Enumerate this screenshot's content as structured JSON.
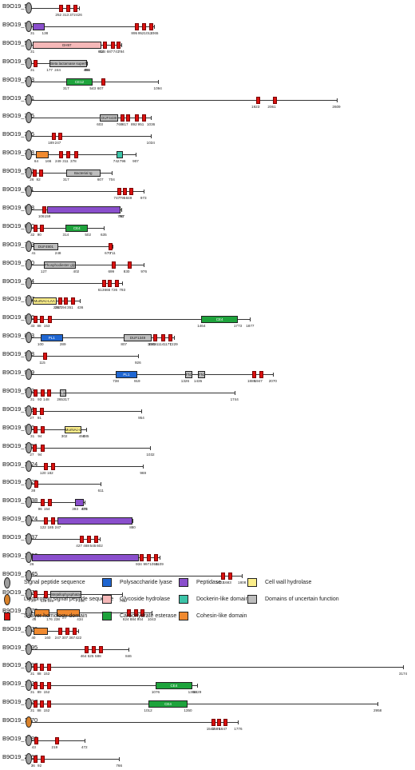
{
  "palette": {
    "polysaccharide_lyase": "#1f66d1",
    "glycoside_hydrolase": "#f5b8b8",
    "carbohydrate_esterase": "#1ea33c",
    "peptidase": "#8a4fcc",
    "dockerin": "#3cc4a8",
    "cohesin": "#f08a30",
    "cell_wall_hydrolase": "#fbee8a",
    "uncertain": "#bdbdbd",
    "slh": "#d9100e",
    "signal": "#9e9e9e",
    "lipo": "#d9822b"
  },
  "proteins": [
    {
      "name": "B9O19_50",
      "len": 426,
      "sig": "signal",
      "slh": [
        252,
        313,
        372
      ],
      "doms": [],
      "nums": [
        "252",
        "313",
        "372",
        "426"
      ]
    },
    {
      "name": "B9O19_52",
      "len": 1065,
      "sig": "signal",
      "slh": [
        895,
        952,
        1012
      ],
      "doms": [
        {
          "s": 31,
          "e": 138,
          "t": "peptidase",
          "l": ""
        }
      ],
      "nums": [
        "31",
        "138",
        "895",
        "952",
        "1012",
        "1065"
      ]
    },
    {
      "name": "B9O19_53",
      "len": 784,
      "sig": "signal",
      "slh": [
        624,
        687,
        741
      ],
      "doms": [
        {
          "s": 31,
          "e": 614,
          "t": "glycoside_hydrolase",
          "l": "GH97"
        }
      ],
      "nums": [
        "31",
        "614",
        "624",
        "687",
        "741",
        "784"
      ]
    },
    {
      "name": "B9O19_97",
      "len": 496,
      "sig": "signal",
      "slh": [
        31
      ],
      "doms": [
        {
          "s": 177,
          "e": 491,
          "t": "uncertain",
          "l": "Beta lactamase superfamily"
        }
      ],
      "nums": [
        "31",
        "177",
        "244",
        "491",
        "496"
      ]
    },
    {
      "name": "B9O19_203",
      "len": 1094,
      "sig": "signal",
      "slh": [
        607
      ],
      "doms": [
        {
          "s": 317,
          "e": 543,
          "t": "carbohydrate_esterase",
          "l": "CE12"
        }
      ],
      "nums": [
        "317",
        "543",
        "607",
        "1094"
      ]
    },
    {
      "name": "B9O19_241",
      "len": 2609,
      "sig": "signal",
      "slh": [
        1923,
        2061
      ],
      "doms": [],
      "nums": [
        "1923",
        "2061",
        "2609"
      ]
    },
    {
      "name": "B9O19_305",
      "len": 1036,
      "sig": "signal",
      "slh": [
        769,
        817,
        892,
        951
      ],
      "doms": [
        {
          "s": 603,
          "e": 760,
          "t": "uncertain",
          "l": "DUF4430"
        }
      ],
      "nums": [
        "603",
        "769",
        "817",
        "892",
        "951",
        "1036"
      ]
    },
    {
      "name": "B9O19_386",
      "len": 1034,
      "sig": "signal",
      "slh": [
        189,
        247
      ],
      "doms": [],
      "nums": [
        "189",
        "247",
        "1034"
      ]
    },
    {
      "name": "B9O19_388",
      "len": 907,
      "sig": "signal",
      "slh": [
        249,
        311,
        378
      ],
      "doms": [
        {
          "s": 64,
          "e": 166,
          "t": "cohesin",
          "l": ""
        },
        {
          "s": 742,
          "e": 796,
          "t": "dockerin",
          "l": ""
        }
      ],
      "nums": [
        "64",
        "166",
        "249",
        "311",
        "378",
        "742",
        "796",
        "907"
      ]
    },
    {
      "name": "B9O19_543",
      "len": 704,
      "sig": "signal",
      "slh": [
        26,
        82
      ],
      "doms": [
        {
          "s": 317,
          "e": 607,
          "t": "uncertain",
          "l": "Bacterial Ig"
        }
      ],
      "nums": [
        "26",
        "82",
        "317",
        "607",
        "704"
      ]
    },
    {
      "name": "B9O19_611",
      "len": 973,
      "sig": "signal",
      "slh": [
        747,
        795,
        849
      ],
      "doms": [],
      "nums": [
        "747",
        "795",
        "849",
        "973"
      ]
    },
    {
      "name": "B9O19_618",
      "len": 787,
      "sig": "signal",
      "slh": [
        106
      ],
      "doms": [
        {
          "s": 159,
          "e": 780,
          "t": "peptidase",
          "l": ""
        }
      ],
      "nums": [
        "106",
        "159",
        "780",
        "787"
      ]
    },
    {
      "name": "B9O19_680",
      "len": 635,
      "sig": "signal",
      "slh": [
        32,
        90
      ],
      "doms": [
        {
          "s": 314,
          "e": 502,
          "t": "carbohydrate_esterase",
          "l": "CE4"
        }
      ],
      "nums": [
        "32",
        "90",
        "314",
        "502",
        "635"
      ]
    },
    {
      "name": "B9O19_743",
      "len": 711,
      "sig": "signal",
      "slh": [
        670
      ],
      "doms": [
        {
          "s": 41,
          "e": 248,
          "t": "uncertain",
          "l": "DUF4901"
        }
      ],
      "nums": [
        "41",
        "248",
        "670",
        "711"
      ]
    },
    {
      "name": "B9O19_770",
      "len": 976,
      "sig": "signal",
      "slh": [
        699,
        830
      ],
      "doms": [
        {
          "s": 127,
          "e": 402,
          "t": "uncertain",
          "l": "Phosphodiester glycosidase"
        }
      ],
      "nums": [
        "127",
        "402",
        "699",
        "830",
        "976"
      ]
    },
    {
      "name": "B9O19_794",
      "len": 793,
      "sig": "signal",
      "slh": [
        613,
        666,
        726
      ],
      "doms": [],
      "nums": [
        "613",
        "666",
        "726",
        "793"
      ]
    },
    {
      "name": "B9O19_797",
      "len": 436,
      "sig": "signal",
      "slh": [
        247,
        294,
        351
      ],
      "doms": [
        {
          "s": 31,
          "e": 235,
          "t": "cell_wall_hydrolase",
          "l": "MurNAc-LAA"
        }
      ],
      "nums": [
        "235",
        "247",
        "294",
        "351",
        "436"
      ]
    },
    {
      "name": "B9O19_826",
      "len": 1877,
      "sig": "signal",
      "slh": [
        33,
        88,
        153
      ],
      "doms": [
        {
          "s": 1464,
          "e": 1773,
          "t": "carbohydrate_esterase",
          "l": "CE4"
        }
      ],
      "nums": [
        "33",
        "88",
        "153",
        "1464",
        "1773",
        "1877"
      ]
    },
    {
      "name": "B9O19_873",
      "len": 1229,
      "sig": "signal",
      "slh": [
        1049,
        1114,
        1177
      ],
      "doms": [
        {
          "s": 100,
          "e": 289,
          "t": "polysaccharide_lyase",
          "l": "PL1"
        },
        {
          "s": 807,
          "e": 1041,
          "t": "uncertain",
          "l": "DUF1349"
        }
      ],
      "nums": [
        "100",
        "289",
        "807",
        "1041",
        "1049",
        "1114",
        "1177",
        "1229"
      ]
    },
    {
      "name": "B9O19_908",
      "len": 926,
      "sig": "signal",
      "slh": [
        115
      ],
      "doms": [],
      "nums": [
        "115",
        "926"
      ]
    },
    {
      "name": "B9O19_909",
      "len": 2070,
      "sig": "signal",
      "slh": [
        1889,
        1947
      ],
      "doms": [
        {
          "s": 738,
          "e": 919,
          "t": "polysaccharide_lyase",
          "l": "PL1"
        },
        {
          "s": 1326,
          "e": 1385,
          "t": "uncertain",
          "l": "FN3"
        },
        {
          "s": 1435,
          "e": 1494,
          "t": "uncertain",
          "l": "FN3"
        }
      ],
      "nums": [
        "738",
        "919",
        "1326",
        "1435",
        "1889",
        "1947",
        "2070"
      ]
    },
    {
      "name": "B9O19_912",
      "len": 1744,
      "sig": "signal",
      "slh": [
        31,
        93,
        148
      ],
      "doms": [
        {
          "s": 265,
          "e": 317,
          "t": "uncertain",
          "l": "Lon Bact-rpt"
        }
      ],
      "nums": [
        "31",
        "93",
        "148",
        "265",
        "317",
        "1744"
      ]
    },
    {
      "name": "B9O19_914",
      "len": 954,
      "sig": "signal",
      "slh": [
        27,
        91
      ],
      "doms": [],
      "nums": [
        "27",
        "91",
        "954"
      ]
    },
    {
      "name": "B9O19_916",
      "len": 485,
      "sig": "signal",
      "slh": [
        31,
        94
      ],
      "doms": [
        {
          "s": 302,
          "e": 450,
          "t": "cell_wall_hydrolase",
          "l": "MurNAc-LAA"
        }
      ],
      "nums": [
        "31",
        "94",
        "302",
        "450",
        "485"
      ]
    },
    {
      "name": "B9O19_1156",
      "len": 1032,
      "sig": "signal",
      "slh": [
        27,
        94
      ],
      "doms": [],
      "nums": [
        "27",
        "94",
        "1032"
      ]
    },
    {
      "name": "B9O19_1224",
      "len": 969,
      "sig": "signal",
      "slh": [
        120,
        182
      ],
      "doms": [],
      "nums": [
        "120",
        "182",
        "969"
      ]
    },
    {
      "name": "B9O19_1225",
      "len": 611,
      "sig": "signal",
      "slh": [
        38
      ],
      "doms": [],
      "nums": [
        "38",
        "611"
      ]
    },
    {
      "name": "B9O19_1238",
      "len": 474,
      "sig": "signal",
      "slh": [
        96,
        154
      ],
      "doms": [
        {
          "s": 393,
          "e": 470,
          "t": "peptidase",
          "l": ""
        }
      ],
      "nums": [
        "96",
        "154",
        "393",
        "470",
        "474"
      ]
    },
    {
      "name": "B9O19_1274",
      "len": 880,
      "sig": "signal",
      "slh": [
        122,
        185
      ],
      "doms": [
        {
          "s": 247,
          "e": 880,
          "t": "peptidase",
          "l": ""
        }
      ],
      "nums": [
        "122",
        "185",
        "247",
        "880"
      ]
    },
    {
      "name": "B9O19_1337",
      "len": 602,
      "sig": "signal",
      "slh": [
        427,
        488,
        545
      ],
      "doms": [],
      "nums": [
        "427",
        "488",
        "545",
        "602"
      ]
    },
    {
      "name": "B9O19_1403",
      "len": 1109,
      "sig": "signal",
      "slh": [
        934,
        997,
        1059
      ],
      "doms": [
        {
          "s": 26,
          "e": 934,
          "t": "peptidase",
          "l": ""
        }
      ],
      "nums": [
        "26",
        "934",
        "997",
        "1059",
        "1109"
      ]
    },
    {
      "name": "B9O19_1545",
      "len": 1808,
      "sig": "signal",
      "slh": [
        1622,
        1683
      ],
      "doms": [],
      "nums": [
        "1622",
        "1683",
        "1808"
      ]
    },
    {
      "name": "B9O19_1572",
      "len": 795,
      "sig": "signal",
      "slh": [
        37,
        125
      ],
      "doms": [
        {
          "s": 185,
          "e": 446,
          "t": "uncertain",
          "l": "Metallophosphatase superfamily"
        }
      ],
      "nums": [
        "37",
        "125",
        "185",
        "446",
        "795"
      ]
    },
    {
      "name": "B9O19_1578",
      "len": 1043,
      "sig": "signal",
      "slh": [
        824,
        884,
        944
      ],
      "doms": [
        {
          "s": 46,
          "e": 176,
          "t": "cohesin",
          "l": ""
        },
        {
          "s": 238,
          "e": 434,
          "t": "cohesin",
          "l": ""
        }
      ],
      "nums": [
        "46",
        "176",
        "238",
        "434",
        "824",
        "884",
        "944",
        "1043"
      ]
    },
    {
      "name": "B9O19_1579",
      "len": 422,
      "sig": "signal",
      "slh": [
        247,
        307,
        367
      ],
      "doms": [
        {
          "s": 40,
          "e": 160,
          "t": "cohesin",
          "l": ""
        }
      ],
      "nums": [
        "40",
        "160",
        "247",
        "307",
        "367",
        "422"
      ]
    },
    {
      "name": "B9O19_1595",
      "len": 846,
      "sig": "signal",
      "slh": [
        464,
        525,
        588
      ],
      "doms": [],
      "nums": [
        "464",
        "525",
        "588",
        "846"
      ]
    },
    {
      "name": "B9O19_1597",
      "len": 3174,
      "sig": "signal",
      "slh": [
        31,
        88,
        152
      ],
      "doms": [],
      "nums": [
        "31",
        "88",
        "152",
        "3174"
      ]
    },
    {
      "name": "B9O19_1626",
      "len": 1429,
      "sig": "signal",
      "slh": [
        31,
        89,
        152
      ],
      "doms": [
        {
          "s": 1076,
          "e": 1386,
          "t": "carbohydrate_esterase",
          "l": "CE4"
        }
      ],
      "nums": [
        "31",
        "89",
        "152",
        "1076",
        "1386",
        "1429"
      ]
    },
    {
      "name": "B9O19_1627",
      "len": 2958,
      "sig": "signal",
      "slh": [
        31,
        88,
        152
      ],
      "doms": [
        {
          "s": 1012,
          "e": 1350,
          "t": "carbohydrate_esterase",
          "l": "CE4"
        }
      ],
      "nums": [
        "31",
        "88",
        "152",
        "1012",
        "1350",
        "2958"
      ]
    },
    {
      "name": "B9O19_1870",
      "len": 1776,
      "sig": "lipo",
      "slh": [
        1542,
        1589,
        1647
      ],
      "doms": [],
      "nums": [
        "1542",
        "1589",
        "1647",
        "1776"
      ]
    },
    {
      "name": "B9O19_1883",
      "len": 472,
      "sig": "signal",
      "slh": [
        43,
        219
      ],
      "doms": [],
      "nums": [
        "43",
        "219",
        "472"
      ]
    },
    {
      "name": "B9O19_2167",
      "len": 766,
      "sig": "signal",
      "slh": [
        36,
        92
      ],
      "doms": [],
      "nums": [
        "36",
        "92",
        "766"
      ]
    }
  ],
  "legend": {
    "signal": "Signal peptide sequence",
    "lipo": "Lipoprotein signal peptide sequence",
    "slh": "S-layer homology domain",
    "polysaccharide_lyase": "Polysaccharide lyase",
    "glycoside_hydrolase": "Glycoside hydrolase",
    "carbohydrate_esterase": "Carbohydrate esterase",
    "peptidase": "Peptidase",
    "dockerin": "Dockerin-like domain",
    "cohesin": "Cohesin-like domain",
    "cell_wall_hydrolase": "Cell wall hydrolase",
    "uncertain": "Domains of uncertain function"
  }
}
